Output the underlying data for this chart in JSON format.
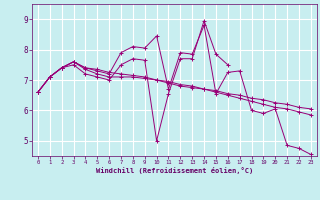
{
  "xlabel": "Windchill (Refroidissement éolien,°C)",
  "background_color": "#c8eef0",
  "grid_color": "#ffffff",
  "line_color": "#990077",
  "xlim": [
    -0.5,
    23.5
  ],
  "ylim": [
    4.5,
    9.5
  ],
  "yticks": [
    5,
    6,
    7,
    8,
    9
  ],
  "xticks": [
    0,
    1,
    2,
    3,
    4,
    5,
    6,
    7,
    8,
    9,
    10,
    11,
    12,
    13,
    14,
    15,
    16,
    17,
    18,
    19,
    20,
    21,
    22,
    23
  ],
  "series": [
    [
      6.6,
      7.1,
      7.4,
      7.6,
      7.4,
      7.3,
      7.2,
      7.9,
      8.1,
      8.05,
      8.45,
      6.7,
      7.9,
      7.85,
      8.8,
      6.55,
      7.25,
      7.3,
      6.0,
      5.9,
      6.05,
      4.85,
      4.75,
      4.55
    ],
    [
      6.6,
      7.1,
      7.4,
      7.5,
      7.2,
      7.1,
      7.0,
      7.5,
      7.7,
      7.65,
      5.0,
      6.55,
      7.7,
      7.7,
      8.95,
      7.85,
      7.5,
      null,
      null,
      null,
      null,
      null,
      null,
      null
    ],
    [
      6.6,
      7.1,
      7.4,
      7.6,
      7.35,
      7.2,
      7.1,
      7.1,
      7.1,
      7.05,
      7.0,
      6.9,
      6.8,
      6.75,
      6.7,
      6.6,
      6.5,
      6.4,
      6.3,
      6.2,
      6.1,
      6.05,
      5.95,
      5.85
    ],
    [
      6.6,
      7.1,
      7.4,
      7.6,
      7.4,
      7.35,
      7.25,
      7.2,
      7.15,
      7.1,
      7.0,
      6.95,
      6.85,
      6.8,
      6.7,
      6.65,
      6.55,
      6.5,
      6.4,
      6.35,
      6.25,
      6.2,
      6.1,
      6.05
    ]
  ]
}
